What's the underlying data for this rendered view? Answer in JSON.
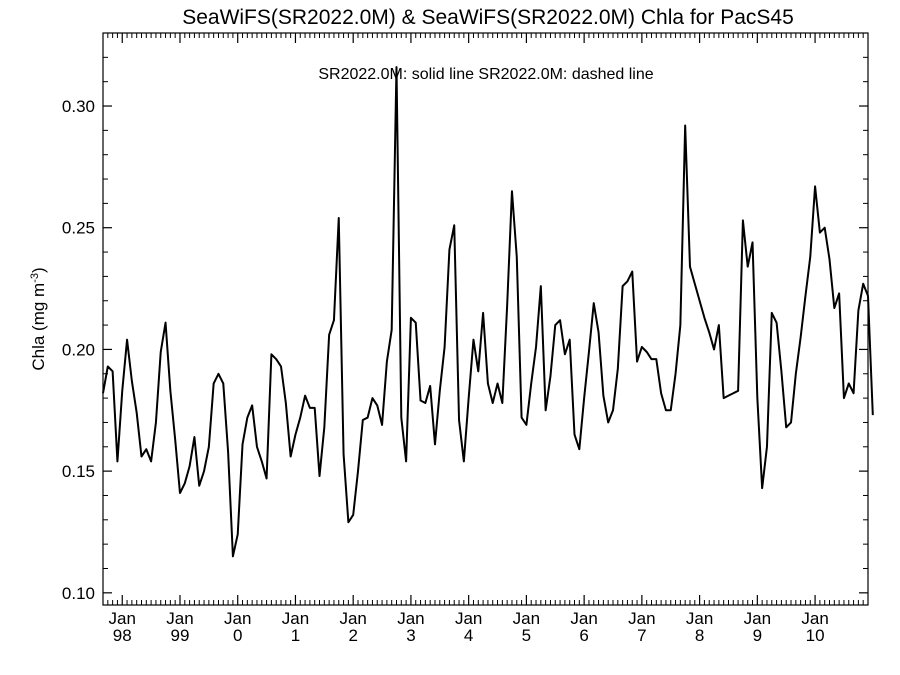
{
  "chart_data": {
    "type": "line",
    "title": "SeaWiFS(SR2022.0M) & SeaWiFS(SR2022.0M)  Chla for PacS45",
    "legend_text": "SR2022.0M: solid line   SR2022.0M: dashed line",
    "ylabel": "Chla (mg m",
    "ylabel_sup": "-3",
    "ylabel_close": ")",
    "ylim": [
      0.095,
      0.33
    ],
    "yticks": [
      0.1,
      0.15,
      0.2,
      0.25,
      0.3
    ],
    "ytick_labels": [
      "0.10",
      "0.15",
      "0.20",
      "0.25",
      "0.30"
    ],
    "xticks": [
      {
        "month": "Jan",
        "year": "98"
      },
      {
        "month": "Jan",
        "year": "99"
      },
      {
        "month": "Jan",
        "year": "0"
      },
      {
        "month": "Jan",
        "year": "1"
      },
      {
        "month": "Jan",
        "year": "2"
      },
      {
        "month": "Jan",
        "year": "3"
      },
      {
        "month": "Jan",
        "year": "4"
      },
      {
        "month": "Jan",
        "year": "5"
      },
      {
        "month": "Jan",
        "year": "6"
      },
      {
        "month": "Jan",
        "year": "7"
      },
      {
        "month": "Jan",
        "year": "8"
      },
      {
        "month": "Jan",
        "year": "9"
      },
      {
        "month": "Jan",
        "year": "10"
      }
    ],
    "xrange": [
      "1997-09",
      "2010-12"
    ],
    "series": [
      {
        "style": "solid",
        "color": "#000000",
        "start": "1997-09",
        "values": [
          0.182,
          0.193,
          0.191,
          0.154,
          0.183,
          0.204,
          0.187,
          0.174,
          0.156,
          0.159,
          0.154,
          0.17,
          0.199,
          0.211,
          0.183,
          0.163,
          0.141,
          0.145,
          0.152,
          0.164,
          0.144,
          0.15,
          0.16,
          0.186,
          0.19,
          0.186,
          0.158,
          0.115,
          0.124,
          0.161,
          0.172,
          0.177,
          0.16,
          0.154,
          0.147,
          0.198,
          0.196,
          0.193,
          0.178,
          0.156,
          0.165,
          0.172,
          0.181,
          0.176,
          0.176,
          0.148,
          0.168,
          0.206,
          0.212,
          0.254,
          0.157,
          0.129,
          0.132,
          0.15,
          0.171,
          0.172,
          0.18,
          0.177,
          0.169,
          0.195,
          0.208,
          0.316,
          0.172,
          0.154,
          0.213,
          0.211,
          0.179,
          0.178,
          0.185,
          0.161,
          0.183,
          0.201,
          0.241,
          0.251,
          0.171,
          0.154,
          0.18,
          0.204,
          0.191,
          0.215,
          0.186,
          0.178,
          0.186,
          0.178,
          0.218,
          0.265,
          0.238,
          0.172,
          0.169,
          0.186,
          0.201,
          0.226,
          0.175,
          0.189,
          0.21,
          0.212,
          0.198,
          0.204,
          0.165,
          0.159,
          0.18,
          0.199,
          0.219,
          0.207,
          0.181,
          0.17,
          0.175,
          0.192,
          0.226,
          0.228,
          0.232,
          0.195,
          0.201,
          0.199,
          0.196,
          0.196,
          0.182,
          0.175,
          0.175,
          0.19,
          0.21,
          0.292,
          0.234,
          0.227,
          0.22,
          0.213,
          0.207,
          0.2,
          0.21,
          0.18,
          0.181,
          0.182,
          0.183,
          0.253,
          0.234,
          0.244,
          0.18,
          0.143,
          0.16,
          0.215,
          0.211,
          0.191,
          0.168,
          0.17,
          0.19,
          0.205,
          0.222,
          0.238,
          0.267,
          0.248,
          0.25,
          0.237,
          0.217,
          0.223,
          0.18,
          0.186,
          0.182,
          0.216,
          0.227,
          0.222,
          0.173
        ]
      }
    ],
    "grid": false
  }
}
